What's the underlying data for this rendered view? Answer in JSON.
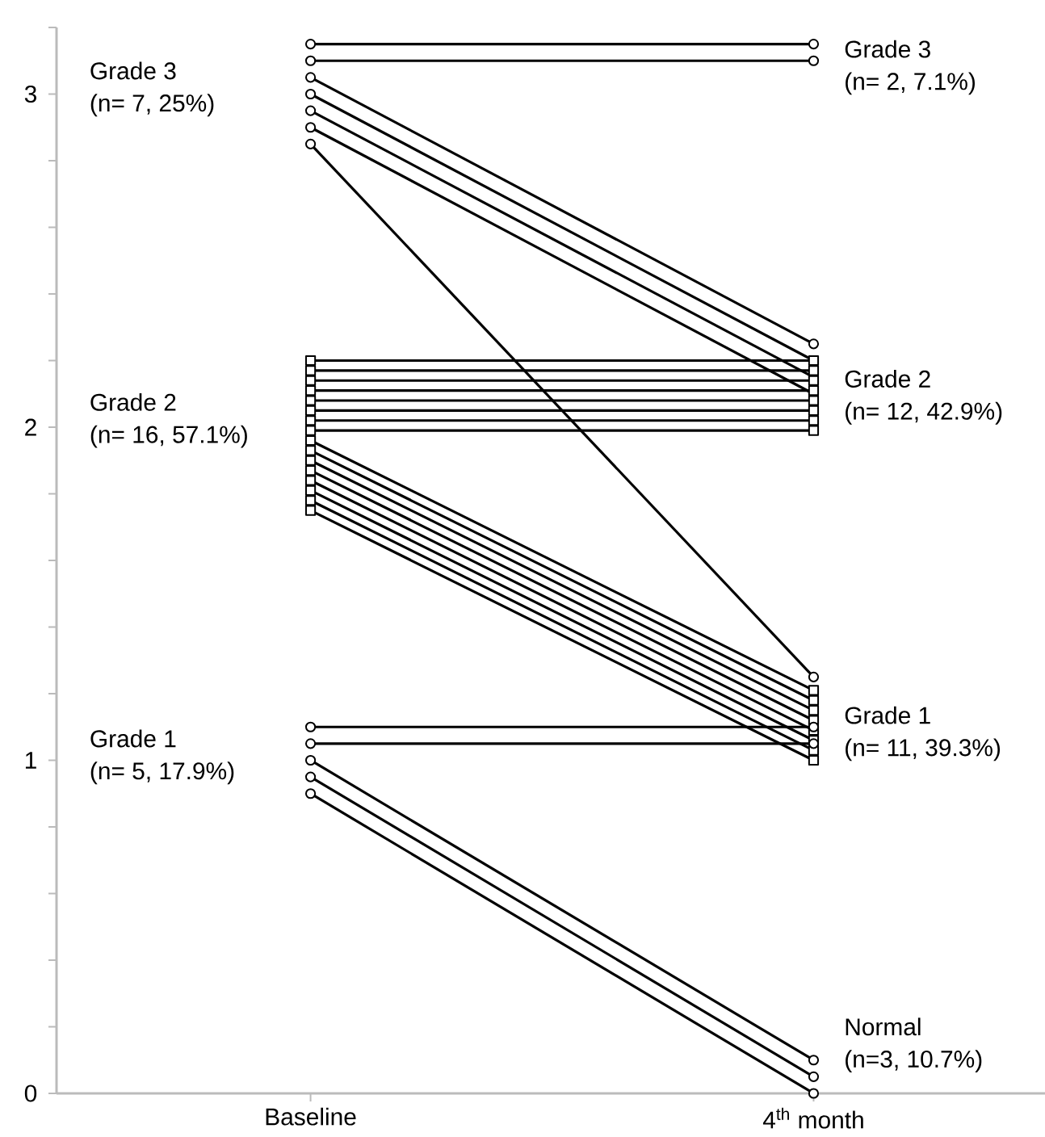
{
  "chart_data": {
    "type": "line",
    "categories": [
      "Baseline",
      "4$^{th}$ month"
    ],
    "ylim": [
      0,
      3.2
    ],
    "yticks": [
      0,
      {
        "value": 0.2,
        "label": null
      },
      {
        "value": 0.4,
        "label": null
      },
      {
        "value": 0.6,
        "label": null
      },
      {
        "value": 0.8,
        "label": null
      },
      1,
      {
        "value": 1.2,
        "label": null
      },
      {
        "value": 1.4,
        "label": null
      },
      {
        "value": 1.6,
        "label": null
      },
      {
        "value": 1.8,
        "label": null
      },
      2,
      {
        "value": 2.2,
        "label": null
      },
      {
        "value": 2.4,
        "label": null
      },
      {
        "value": 2.6,
        "label": null
      },
      {
        "value": 2.8,
        "label": null
      },
      3,
      {
        "value": 3.2,
        "label": null
      }
    ],
    "grid": false,
    "series": [
      {
        "color": "#000000",
        "marker": "circle",
        "values": [
          3.15,
          3.15
        ]
      },
      {
        "color": "#000000",
        "marker": "circle",
        "values": [
          3.1,
          3.1
        ]
      },
      {
        "color": "#000000",
        "marker": "circle",
        "values": [
          3.05,
          2.25
        ]
      },
      {
        "color": "#000000",
        "marker": "circle",
        "values": [
          3.0,
          2.2
        ]
      },
      {
        "color": "#000000",
        "marker": "circle",
        "values": [
          2.95,
          2.15
        ]
      },
      {
        "color": "#000000",
        "marker": "circle",
        "values": [
          2.9,
          2.1
        ]
      },
      {
        "color": "#000000",
        "marker": "circle",
        "values": [
          2.85,
          1.25
        ]
      },
      {
        "color": "#000000",
        "marker": "square",
        "values": [
          2.2,
          2.2
        ]
      },
      {
        "color": "#000000",
        "marker": "square",
        "values": [
          2.17,
          2.17
        ]
      },
      {
        "color": "#000000",
        "marker": "square",
        "values": [
          2.14,
          2.14
        ]
      },
      {
        "color": "#000000",
        "marker": "square",
        "values": [
          2.11,
          2.11
        ]
      },
      {
        "color": "#000000",
        "marker": "square",
        "values": [
          2.08,
          2.08
        ]
      },
      {
        "color": "#000000",
        "marker": "square",
        "values": [
          2.05,
          2.05
        ]
      },
      {
        "color": "#000000",
        "marker": "square",
        "values": [
          2.02,
          2.02
        ]
      },
      {
        "color": "#000000",
        "marker": "square",
        "values": [
          1.99,
          1.99
        ]
      },
      {
        "color": "#000000",
        "marker": "square",
        "values": [
          1.96,
          1.21
        ]
      },
      {
        "color": "#000000",
        "marker": "square",
        "values": [
          1.93,
          1.18
        ]
      },
      {
        "color": "#000000",
        "marker": "square",
        "values": [
          1.9,
          1.15
        ]
      },
      {
        "color": "#000000",
        "marker": "square",
        "values": [
          1.87,
          1.12
        ]
      },
      {
        "color": "#000000",
        "marker": "square",
        "values": [
          1.84,
          1.09
        ]
      },
      {
        "color": "#000000",
        "marker": "square",
        "values": [
          1.81,
          1.06
        ]
      },
      {
        "color": "#000000",
        "marker": "square",
        "values": [
          1.78,
          1.03
        ]
      },
      {
        "color": "#000000",
        "marker": "square",
        "values": [
          1.75,
          1.0
        ]
      },
      {
        "color": "#000000",
        "marker": "circle",
        "values": [
          1.1,
          1.1
        ]
      },
      {
        "color": "#000000",
        "marker": "circle",
        "values": [
          1.05,
          1.05
        ]
      },
      {
        "color": "#000000",
        "marker": "circle",
        "values": [
          1.0,
          0.1
        ]
      },
      {
        "color": "#000000",
        "marker": "circle",
        "values": [
          0.95,
          0.05
        ]
      },
      {
        "color": "#000000",
        "marker": "circle",
        "values": [
          0.9,
          0.0
        ]
      }
    ],
    "annotations": [
      "Grade 3",
      "(n= 7, 25%)",
      "Grade 2",
      "(n= 16, 57.1%)",
      "Grade 1",
      "(n= 5, 17.9%)",
      "Grade 3",
      "(n= 2, 7.1%)",
      "Grade 2",
      "(n= 12, 42.9%)",
      "Grade 1",
      "(n= 11, 39.3%)",
      "Normal",
      "(n=3, 10.7%)"
    ]
  }
}
